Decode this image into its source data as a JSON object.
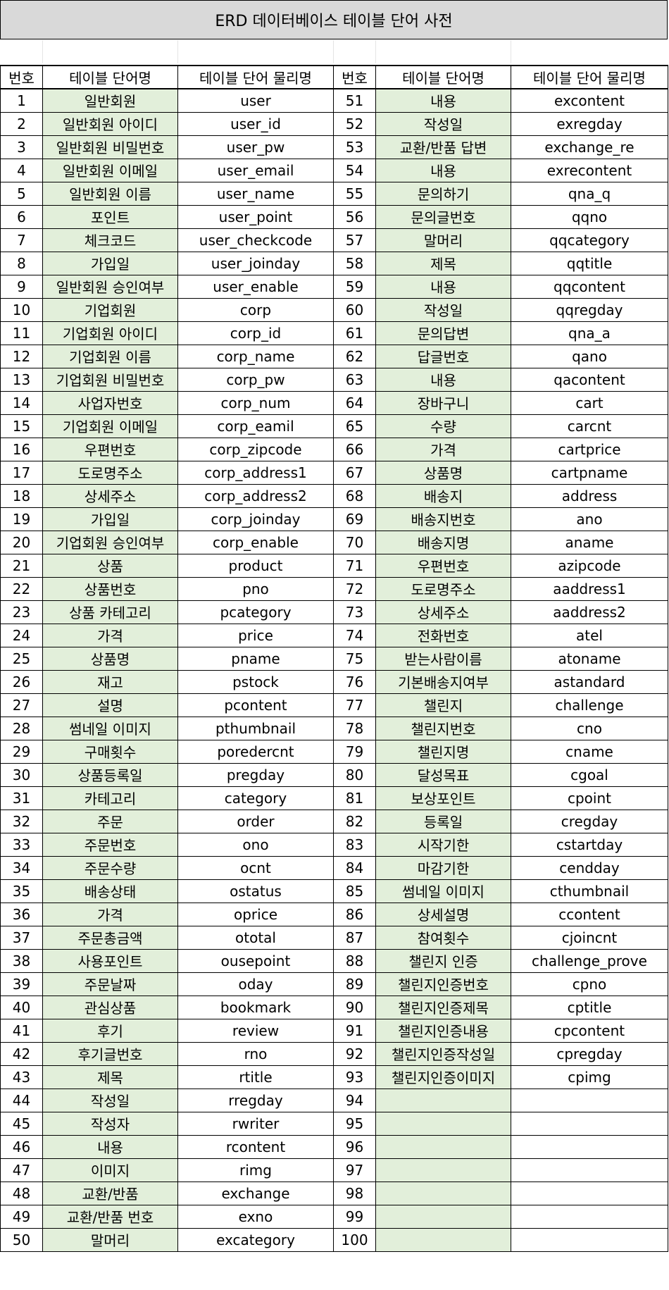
{
  "title": "ERD 데이터베이스 테이블 단어 사전",
  "headers": [
    "번호",
    "테이블 단어명",
    "테이블 단어 물리명",
    "번호",
    "테이블 단어명",
    "테이블 단어 물리명"
  ],
  "left_rows": [
    {
      "no": "1",
      "ko": "일반회원",
      "en": "user"
    },
    {
      "no": "2",
      "ko": "일반회원 아이디",
      "en": "user_id"
    },
    {
      "no": "3",
      "ko": "일반회원 비밀번호",
      "en": "user_pw"
    },
    {
      "no": "4",
      "ko": "일반회원 이메일",
      "en": "user_email"
    },
    {
      "no": "5",
      "ko": "일반회원 이름",
      "en": "user_name"
    },
    {
      "no": "6",
      "ko": "포인트",
      "en": "user_point"
    },
    {
      "no": "7",
      "ko": "체크코드",
      "en": "user_checkcode"
    },
    {
      "no": "8",
      "ko": "가입일",
      "en": "user_joinday"
    },
    {
      "no": "9",
      "ko": "일반회원 승인여부",
      "en": "user_enable"
    },
    {
      "no": "10",
      "ko": "기업회원",
      "en": "corp"
    },
    {
      "no": "11",
      "ko": "기업회원 아이디",
      "en": "corp_id"
    },
    {
      "no": "12",
      "ko": "기업회원 이름",
      "en": "corp_name"
    },
    {
      "no": "13",
      "ko": "기업회원 비밀번호",
      "en": "corp_pw"
    },
    {
      "no": "14",
      "ko": "사업자번호",
      "en": "corp_num"
    },
    {
      "no": "15",
      "ko": "기업회원 이메일",
      "en": "corp_eamil"
    },
    {
      "no": "16",
      "ko": "우편번호",
      "en": "corp_zipcode"
    },
    {
      "no": "17",
      "ko": "도로명주소",
      "en": "corp_address1"
    },
    {
      "no": "18",
      "ko": "상세주소",
      "en": "corp_address2"
    },
    {
      "no": "19",
      "ko": "가입일",
      "en": "corp_joinday"
    },
    {
      "no": "20",
      "ko": "기업회원 승인여부",
      "en": "corp_enable"
    },
    {
      "no": "21",
      "ko": "상품",
      "en": "product"
    },
    {
      "no": "22",
      "ko": "상품번호",
      "en": "pno"
    },
    {
      "no": "23",
      "ko": "상품 카테고리",
      "en": "pcategory"
    },
    {
      "no": "24",
      "ko": "가격",
      "en": "price"
    },
    {
      "no": "25",
      "ko": "상품명",
      "en": "pname"
    },
    {
      "no": "26",
      "ko": "재고",
      "en": "pstock"
    },
    {
      "no": "27",
      "ko": "설명",
      "en": "pcontent"
    },
    {
      "no": "28",
      "ko": "썸네일 이미지",
      "en": "pthumbnail"
    },
    {
      "no": "29",
      "ko": "구매횟수",
      "en": "poredercnt"
    },
    {
      "no": "30",
      "ko": "상품등록일",
      "en": "pregday"
    },
    {
      "no": "31",
      "ko": "카테고리",
      "en": "category"
    },
    {
      "no": "32",
      "ko": "주문",
      "en": "order"
    },
    {
      "no": "33",
      "ko": "주문번호",
      "en": "ono"
    },
    {
      "no": "34",
      "ko": "주문수량",
      "en": "ocnt"
    },
    {
      "no": "35",
      "ko": "배송상태",
      "en": "ostatus"
    },
    {
      "no": "36",
      "ko": "가격",
      "en": "oprice"
    },
    {
      "no": "37",
      "ko": "주문총금액",
      "en": "ototal"
    },
    {
      "no": "38",
      "ko": "사용포인트",
      "en": "ousepoint"
    },
    {
      "no": "39",
      "ko": "주문날짜",
      "en": "oday"
    },
    {
      "no": "40",
      "ko": "관심상품",
      "en": "bookmark"
    },
    {
      "no": "41",
      "ko": "후기",
      "en": "review"
    },
    {
      "no": "42",
      "ko": "후기글번호",
      "en": "rno"
    },
    {
      "no": "43",
      "ko": "제목",
      "en": "rtitle"
    },
    {
      "no": "44",
      "ko": "작성일",
      "en": "rregday"
    },
    {
      "no": "45",
      "ko": "작성자",
      "en": "rwriter"
    },
    {
      "no": "46",
      "ko": "내용",
      "en": "rcontent"
    },
    {
      "no": "47",
      "ko": "이미지",
      "en": "rimg"
    },
    {
      "no": "48",
      "ko": "교환/반품",
      "en": "exchange"
    },
    {
      "no": "49",
      "ko": "교환/반품 번호",
      "en": "exno"
    },
    {
      "no": "50",
      "ko": "말머리",
      "en": "excategory"
    }
  ],
  "right_rows": [
    {
      "no": "51",
      "ko": "내용",
      "en": "excontent"
    },
    {
      "no": "52",
      "ko": "작성일",
      "en": "exregday"
    },
    {
      "no": "53",
      "ko": "교환/반품 답변",
      "en": "exchange_re"
    },
    {
      "no": "54",
      "ko": "내용",
      "en": "exrecontent"
    },
    {
      "no": "55",
      "ko": "문의하기",
      "en": "qna_q"
    },
    {
      "no": "56",
      "ko": "문의글번호",
      "en": "qqno"
    },
    {
      "no": "57",
      "ko": "말머리",
      "en": "qqcategory"
    },
    {
      "no": "58",
      "ko": "제목",
      "en": "qqtitle"
    },
    {
      "no": "59",
      "ko": "내용",
      "en": "qqcontent"
    },
    {
      "no": "60",
      "ko": "작성일",
      "en": "qqregday"
    },
    {
      "no": "61",
      "ko": "문의답변",
      "en": "qna_a"
    },
    {
      "no": "62",
      "ko": "답글번호",
      "en": "qano"
    },
    {
      "no": "63",
      "ko": "내용",
      "en": "qacontent"
    },
    {
      "no": "64",
      "ko": "장바구니",
      "en": "cart"
    },
    {
      "no": "65",
      "ko": "수량",
      "en": "carcnt"
    },
    {
      "no": "66",
      "ko": "가격",
      "en": "cartprice"
    },
    {
      "no": "67",
      "ko": "상품명",
      "en": "cartpname"
    },
    {
      "no": "68",
      "ko": "배송지",
      "en": "address"
    },
    {
      "no": "69",
      "ko": "배송지번호",
      "en": "ano"
    },
    {
      "no": "70",
      "ko": "배송지명",
      "en": "aname"
    },
    {
      "no": "71",
      "ko": "우편번호",
      "en": "azipcode"
    },
    {
      "no": "72",
      "ko": "도로명주소",
      "en": "aaddress1"
    },
    {
      "no": "73",
      "ko": "상세주소",
      "en": "aaddress2"
    },
    {
      "no": "74",
      "ko": "전화번호",
      "en": "atel"
    },
    {
      "no": "75",
      "ko": "받는사람이름",
      "en": "atoname"
    },
    {
      "no": "76",
      "ko": "기본배송지여부",
      "en": "astandard"
    },
    {
      "no": "77",
      "ko": "챌린지",
      "en": "challenge"
    },
    {
      "no": "78",
      "ko": "챌린지번호",
      "en": "cno"
    },
    {
      "no": "79",
      "ko": "챌린지명",
      "en": "cname"
    },
    {
      "no": "80",
      "ko": "달성목표",
      "en": "cgoal"
    },
    {
      "no": "81",
      "ko": "보상포인트",
      "en": "cpoint"
    },
    {
      "no": "82",
      "ko": "등록일",
      "en": "cregday"
    },
    {
      "no": "83",
      "ko": "시작기한",
      "en": "cstartday"
    },
    {
      "no": "84",
      "ko": "마감기한",
      "en": "cendday"
    },
    {
      "no": "85",
      "ko": "썸네일 이미지",
      "en": "cthumbnail"
    },
    {
      "no": "86",
      "ko": "상세설명",
      "en": "ccontent"
    },
    {
      "no": "87",
      "ko": "참여횟수",
      "en": "cjoincnt"
    },
    {
      "no": "88",
      "ko": "챌린지 인증",
      "en": "challenge_prove"
    },
    {
      "no": "89",
      "ko": "챌린지인증번호",
      "en": "cpno"
    },
    {
      "no": "90",
      "ko": "챌린지인증제목",
      "en": "cptitle"
    },
    {
      "no": "91",
      "ko": "챌린지인증내용",
      "en": "cpcontent"
    },
    {
      "no": "92",
      "ko": "챌린지인증작성일",
      "en": "cpregday"
    },
    {
      "no": "93",
      "ko": "챌린지인증이미지",
      "en": "cpimg"
    },
    {
      "no": "94",
      "ko": "",
      "en": ""
    },
    {
      "no": "95",
      "ko": "",
      "en": ""
    },
    {
      "no": "96",
      "ko": "",
      "en": ""
    },
    {
      "no": "97",
      "ko": "",
      "en": ""
    },
    {
      "no": "98",
      "ko": "",
      "en": ""
    },
    {
      "no": "99",
      "ko": "",
      "en": ""
    },
    {
      "no": "100",
      "ko": "",
      "en": ""
    }
  ]
}
